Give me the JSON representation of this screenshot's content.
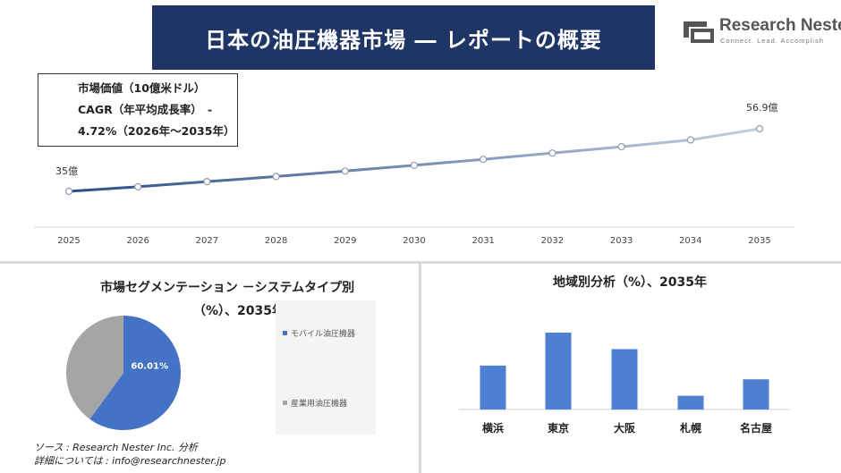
{
  "header": {
    "title": "日本の油圧機器市場 ― レポートの概要"
  },
  "logo": {
    "name": "Research Nester",
    "tagline": "Connect. Lead. Accomplish"
  },
  "info_box": {
    "line1": "市場価値（10億米ドル）",
    "line2": "CAGR（年平均成長率）　-",
    "line3": "4.72%（2026年～2035年）"
  },
  "pie_panel": {
    "title_line1": "市場セグメンテーション －システムタイプ別",
    "title_line2": "（%）、2035年"
  },
  "bar_panel": {
    "title": "地域別分析（%）、2035年"
  },
  "source": {
    "line1": "ソース : Research Nester Inc. 分析",
    "line2": "詳細については : info@researchnester.jp"
  },
  "colors": {
    "title_bg": "#1f3566",
    "pie_primary": "#4472c4",
    "pie_secondary": "#a5a5a5",
    "bar": "#4e7fd0"
  },
  "chart_data": [
    {
      "type": "line",
      "x": [
        "2025",
        "2026",
        "2027",
        "2028",
        "2029",
        "2030",
        "2031",
        "2032",
        "2033",
        "2034",
        "2035"
      ],
      "values": [
        35.0,
        36.6,
        38.4,
        40.2,
        42.1,
        44.1,
        46.2,
        48.4,
        50.6,
        53.0,
        56.9
      ],
      "point_labels": {
        "first": "35億",
        "last": "56.9億"
      }
    },
    {
      "type": "pie",
      "slices": [
        {
          "label": "モバイル油圧機器",
          "value": 60.01,
          "data_label": "60.01%",
          "color": "#4472c4"
        },
        {
          "label": "産業用油圧機器",
          "value": 39.99,
          "color": "#a5a5a5"
        }
      ]
    },
    {
      "type": "bar",
      "categories": [
        "横浜",
        "東京",
        "大阪",
        "札幌",
        "名古屋"
      ],
      "values": [
        16,
        28,
        22,
        5,
        11
      ]
    }
  ]
}
